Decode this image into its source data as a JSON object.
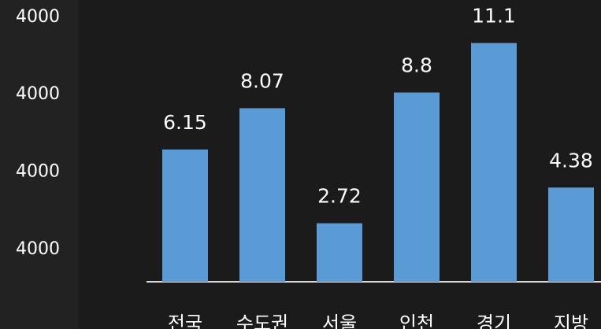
{
  "chart_data": {
    "type": "bar",
    "categories": [
      "전국",
      "수도권",
      "서울",
      "인천",
      "경기",
      "지방"
    ],
    "values": [
      6.15,
      8.07,
      2.72,
      8.8,
      11.1,
      4.38
    ],
    "color": "#5b9bd5",
    "ylim": [
      0,
      13.1
    ],
    "yticks": [
      {
        "value": 1.5,
        "label": "4000"
      },
      {
        "value": 5.1,
        "label": "4000"
      },
      {
        "value": 8.7,
        "label": "4000"
      },
      {
        "value": 12.3,
        "label": "4000"
      }
    ],
    "grid": false
  }
}
